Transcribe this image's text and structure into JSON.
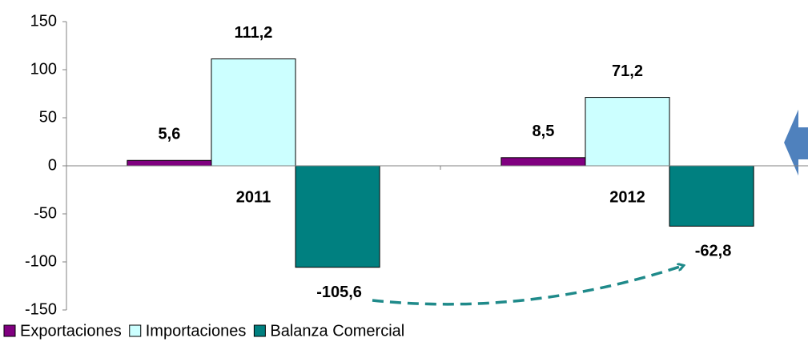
{
  "chart_data": {
    "type": "bar",
    "categories": [
      "2011",
      "2012"
    ],
    "series": [
      {
        "name": "Exportaciones",
        "color": "#800080",
        "values": [
          5.6,
          8.5
        ],
        "value_labels": [
          "5,6",
          "8,5"
        ]
      },
      {
        "name": "Importaciones",
        "color": "#ccffff",
        "values": [
          111.2,
          71.2
        ],
        "value_labels": [
          "111,2",
          "71,2"
        ]
      },
      {
        "name": "Balanza Comercial",
        "color": "#008080",
        "values": [
          -105.6,
          -62.8
        ],
        "value_labels": [
          "-105,6",
          "-62,8"
        ]
      }
    ],
    "ylim": [
      -150,
      150
    ],
    "yticks": [
      -150,
      -100,
      -50,
      0,
      50,
      100,
      150
    ],
    "grid": false,
    "legend": "bottom"
  }
}
